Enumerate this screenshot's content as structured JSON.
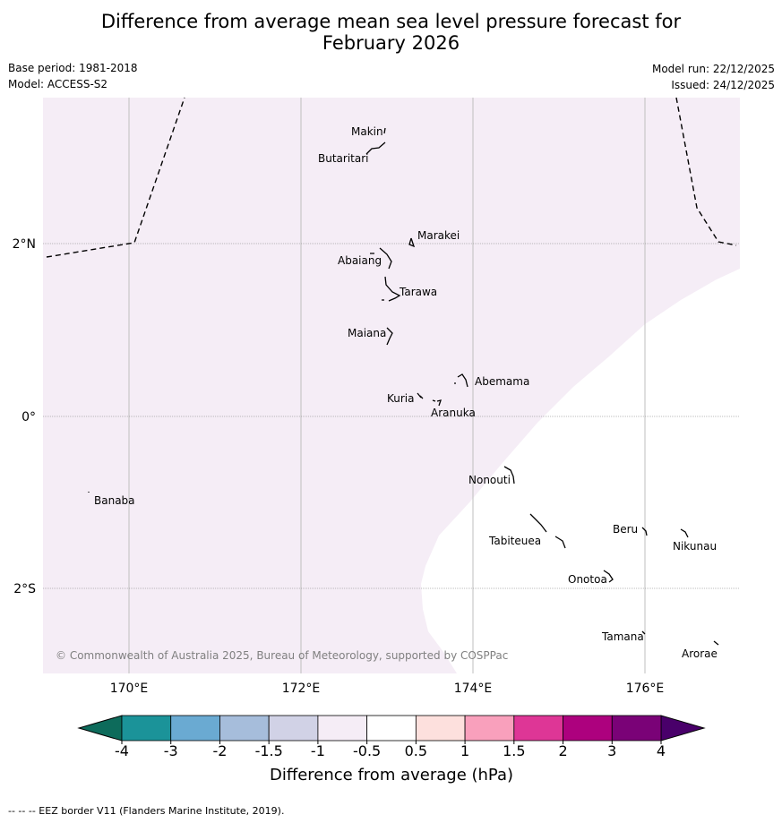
{
  "title": {
    "line1": "Difference from average mean sea level pressure forecast for",
    "line2": "February 2026"
  },
  "meta": {
    "base_period": "Base period: 1981-2018",
    "model": "Model: ACCESS-S2",
    "model_run": "Model run: 22/12/2025",
    "issued": "Issued: 24/12/2025"
  },
  "map": {
    "lat_labels": [
      "2°N",
      "0°",
      "2°S"
    ],
    "lon_labels": [
      "170°E",
      "172°E",
      "174°E",
      "176°E"
    ],
    "places": [
      "Makin",
      "Butaritari",
      "Marakei",
      "Abaiang",
      "Tarawa",
      "Maiana",
      "Abemama",
      "Kuria",
      "Aranuka",
      "Banaba",
      "Nonouti",
      "Tabiteuea",
      "Beru",
      "Nikunau",
      "Onotoa",
      "Tamana",
      "Arorae"
    ],
    "copyright": "© Commonwealth of Australia 2025, Bureau of Meteorology, supported by COSPPac",
    "shade_color": "#f5edf6"
  },
  "colorbar": {
    "ticks": [
      "-4",
      "-3",
      "-2",
      "-1.5",
      "-1",
      "-0.5",
      "0.5",
      "1",
      "1.5",
      "2",
      "3",
      "4"
    ],
    "colors": [
      "#1b9399",
      "#6aaad2",
      "#a6bddb",
      "#d1d2e6",
      "#f5edf6",
      "#ffffff",
      "#fde0dd",
      "#f9a0bc",
      "#de3696",
      "#ad017e",
      "#7a0277"
    ],
    "under_color": "#0d6b5b",
    "over_color": "#49006a",
    "label": "Difference from average (hPa)"
  },
  "footnote": "--  --  -- EEZ border V11 (Flanders Marine Institute, 2019)."
}
